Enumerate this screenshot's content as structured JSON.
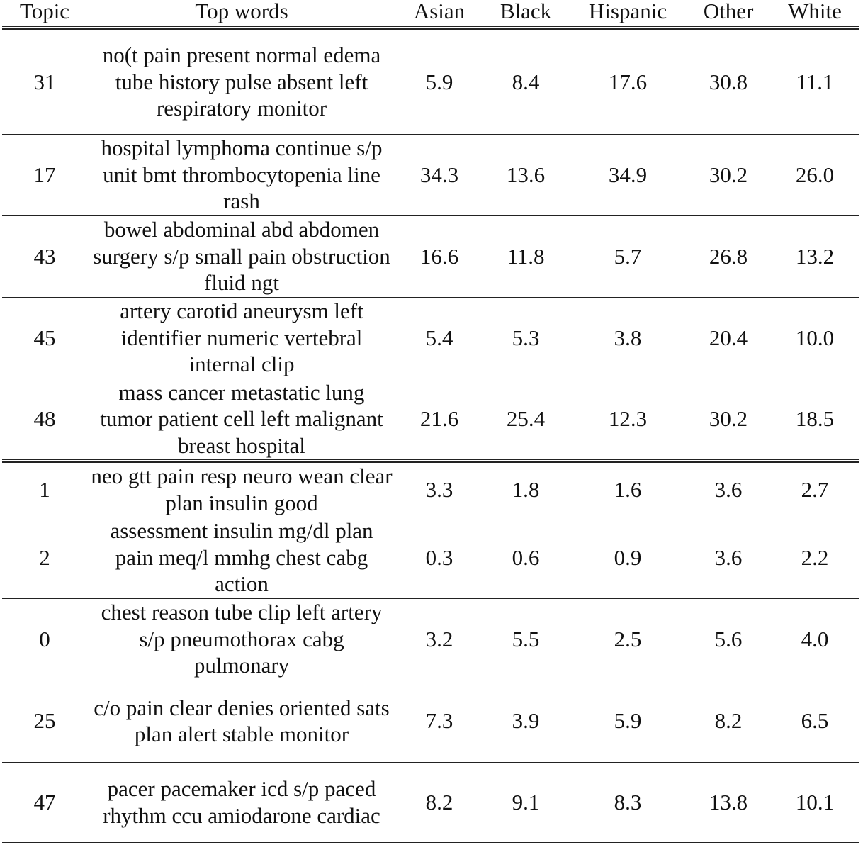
{
  "table": {
    "headers": [
      "Topic",
      "Top words",
      "Asian",
      "Black",
      "Hispanic",
      "Other",
      "White"
    ],
    "rows": [
      {
        "topic": "31",
        "words": "no(t pain present normal edema tube history pulse absent left respiratory monitor",
        "asian": "5.9",
        "black": "8.4",
        "hispanic": "17.6",
        "other": "30.8",
        "white": "11.1"
      },
      {
        "topic": "17",
        "words": "hospital lymphoma continue s/p unit bmt thrombocytopenia line rash",
        "asian": "34.3",
        "black": "13.6",
        "hispanic": "34.9",
        "other": "30.2",
        "white": "26.0"
      },
      {
        "topic": "43",
        "words": "bowel abdominal abd abdomen surgery s/p small pain obstruction fluid ngt",
        "asian": "16.6",
        "black": "11.8",
        "hispanic": "5.7",
        "other": "26.8",
        "white": "13.2"
      },
      {
        "topic": "45",
        "words": "artery carotid aneurysm left identifier numeric vertebral internal clip",
        "asian": "5.4",
        "black": "5.3",
        "hispanic": "3.8",
        "other": "20.4",
        "white": "10.0"
      },
      {
        "topic": "48",
        "words": "mass cancer metastatic lung tumor patient cell left malignant breast hospital",
        "asian": "21.6",
        "black": "25.4",
        "hispanic": "12.3",
        "other": "30.2",
        "white": "18.5"
      },
      {
        "topic": "1",
        "words": "neo gtt pain resp neuro wean clear plan insulin good",
        "asian": "3.3",
        "black": "1.8",
        "hispanic": "1.6",
        "other": "3.6",
        "white": "2.7"
      },
      {
        "topic": "2",
        "words": "assessment insulin mg/dl plan pain meq/l mmhg chest cabg action",
        "asian": "0.3",
        "black": "0.6",
        "hispanic": "0.9",
        "other": "3.6",
        "white": "2.2"
      },
      {
        "topic": "0",
        "words": "chest reason tube clip left artery s/p pneumothorax cabg pulmonary",
        "asian": "3.2",
        "black": "5.5",
        "hispanic": "2.5",
        "other": "5.6",
        "white": "4.0"
      },
      {
        "topic": "25",
        "words": "c/o pain clear denies oriented sats plan alert stable monitor",
        "asian": "7.3",
        "black": "3.9",
        "hispanic": "5.9",
        "other": "8.2",
        "white": "6.5"
      },
      {
        "topic": "47",
        "words": "pacer pacemaker icd s/p paced rhythm ccu amiodarone cardiac",
        "asian": "8.2",
        "black": "9.1",
        "hispanic": "8.3",
        "other": "13.8",
        "white": "10.1"
      }
    ]
  }
}
